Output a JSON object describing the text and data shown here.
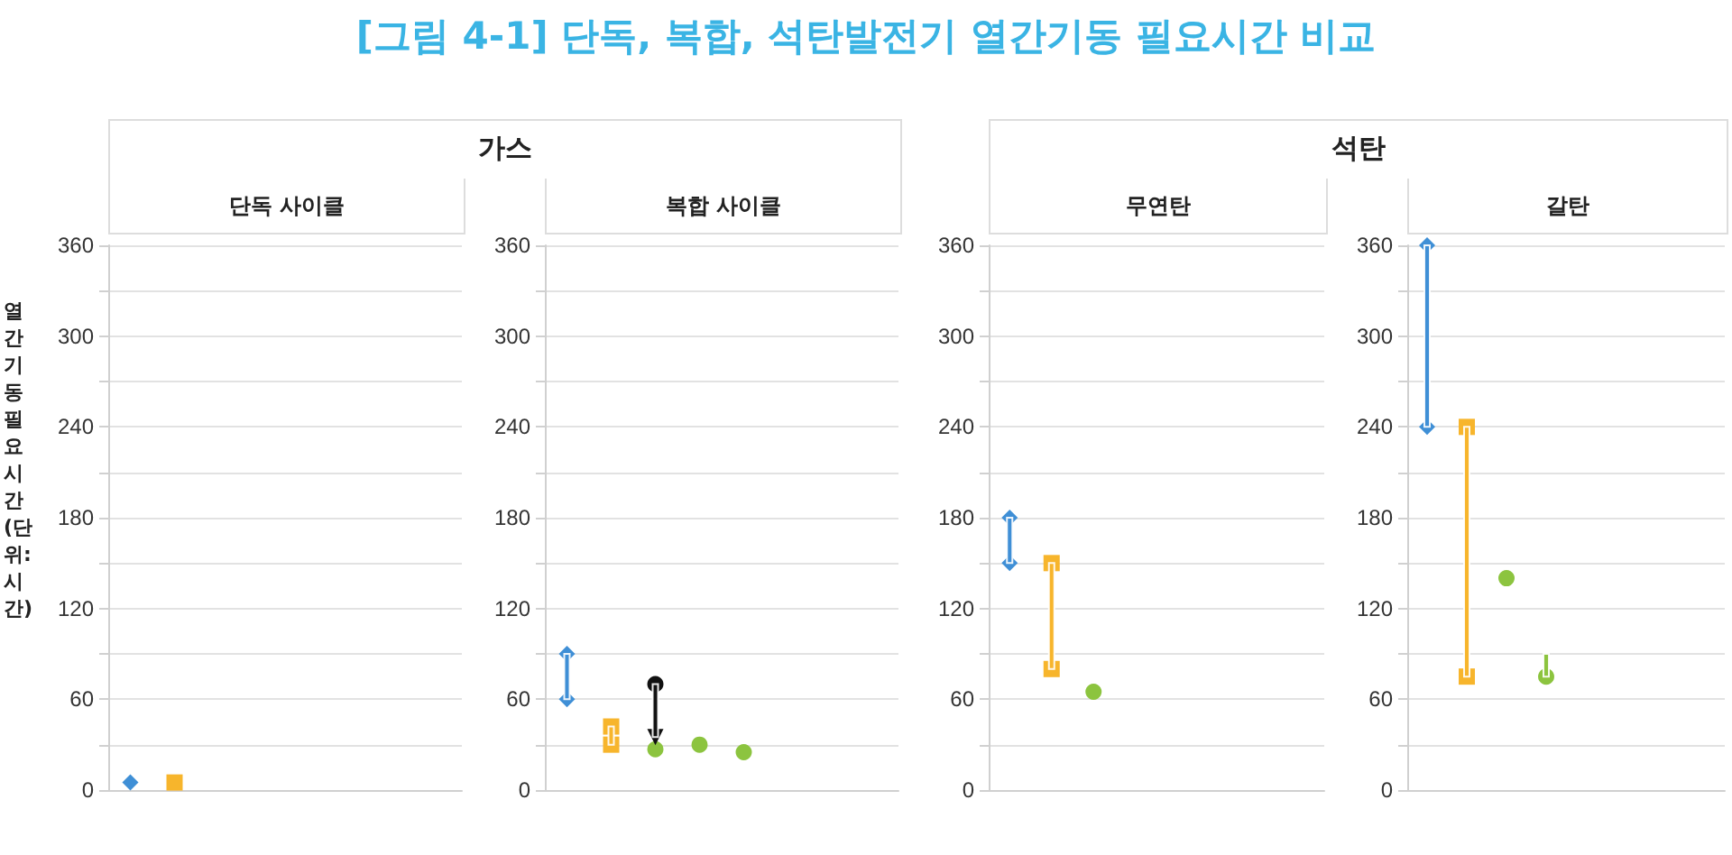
{
  "chart_data": [
    {
      "type": "scatter",
      "title": "[그림 4-1] 단독, 복합, 석탄발전기 열간기동 필요시간 비교",
      "subtitle": "단독 사이클",
      "annotations": [
        "가스"
      ],
      "ylabel": "열간기동 필요시간 (단위: 시간)",
      "categories": [
        null,
        null,
        null,
        null,
        null,
        null,
        null,
        null
      ],
      "grid": "y",
      "ylim": [
        0,
        360
      ],
      "yticks": [
        0,
        {
          "value": 30,
          "label": null
        },
        60,
        {
          "value": 90,
          "label": null
        },
        120,
        {
          "value": 150,
          "label": null
        },
        180,
        {
          "value": 210,
          "label": null
        },
        240,
        {
          "value": 270,
          "label": null
        },
        300,
        {
          "value": 330,
          "label": null
        },
        360
      ],
      "series": [
        {
          "color": "#3f8fd6",
          "marker": "diamond",
          "values": [
            5,
            null,
            null,
            null,
            null,
            null,
            null,
            null
          ]
        },
        {
          "color": "#f7b52c",
          "marker": "square",
          "values": [
            null,
            5,
            null,
            null,
            null,
            null,
            null,
            null
          ]
        }
      ]
    },
    {
      "type": "scatter",
      "subtitle": "복합 사이클",
      "categories": [
        null,
        null,
        null,
        null,
        null,
        null,
        null,
        null
      ],
      "grid": "y",
      "ylim": [
        0,
        360
      ],
      "yticks": [
        0,
        {
          "value": 30,
          "label": null
        },
        60,
        {
          "value": 90,
          "label": null
        },
        120,
        {
          "value": 150,
          "label": null
        },
        180,
        {
          "value": 210,
          "label": null
        },
        240,
        {
          "value": 270,
          "label": null
        },
        300,
        {
          "value": 330,
          "label": null
        },
        360
      ],
      "series": [
        {
          "type": "bar",
          "color": "#3f8fd6",
          "base": [
            60,
            null,
            null,
            null,
            null,
            null,
            null,
            null
          ],
          "values": [
            30,
            null,
            null,
            null,
            null,
            null,
            null,
            null
          ]
        },
        {
          "type": "bar",
          "color": "#f7b52c",
          "base": [
            null,
            30,
            null,
            null,
            null,
            null,
            null,
            null
          ],
          "values": [
            null,
            12,
            null,
            null,
            null,
            null,
            null,
            null
          ]
        },
        {
          "type": "bar",
          "color": "#111111",
          "base": [
            null,
            null,
            35,
            null,
            null,
            null,
            null,
            null
          ],
          "values": [
            null,
            null,
            35,
            null,
            null,
            null,
            null,
            null
          ]
        },
        {
          "color": "#3f8fd6",
          "marker": "diamond",
          "values": [
            60,
            null,
            null,
            null,
            null,
            null,
            null,
            null
          ]
        },
        {
          "color": "#3f8fd6",
          "marker": "diamond",
          "values": [
            90,
            null,
            null,
            null,
            null,
            null,
            null,
            null
          ]
        },
        {
          "color": "#f7b52c",
          "marker": "square",
          "values": [
            null,
            30,
            null,
            null,
            null,
            null,
            null,
            null
          ]
        },
        {
          "color": "#f7b52c",
          "marker": "square",
          "values": [
            null,
            42,
            null,
            null,
            null,
            null,
            null,
            null
          ]
        },
        {
          "color": "#111111",
          "marker": "triangle",
          "values": [
            null,
            null,
            35,
            null,
            null,
            null,
            null,
            null
          ]
        },
        {
          "color": "#111111",
          "marker": "circle",
          "values": [
            null,
            null,
            70,
            null,
            null,
            null,
            null,
            null
          ]
        },
        {
          "color": "#8cc43f",
          "marker": "circle",
          "values": [
            null,
            null,
            27,
            30,
            25,
            null,
            null,
            null
          ]
        }
      ]
    },
    {
      "type": "scatter",
      "subtitle": "무연탄",
      "annotations": [
        "석탄"
      ],
      "categories": [
        null,
        null,
        null,
        null,
        null,
        null,
        null,
        null
      ],
      "grid": "y",
      "ylim": [
        0,
        360
      ],
      "yticks": [
        0,
        {
          "value": 30,
          "label": null
        },
        60,
        {
          "value": 90,
          "label": null
        },
        120,
        {
          "value": 150,
          "label": null
        },
        180,
        {
          "value": 210,
          "label": null
        },
        240,
        {
          "value": 270,
          "label": null
        },
        300,
        {
          "value": 330,
          "label": null
        },
        360
      ],
      "series": [
        {
          "type": "bar",
          "color": "#3f8fd6",
          "base": [
            150,
            null,
            null,
            null,
            null,
            null,
            null,
            null
          ],
          "values": [
            30,
            null,
            null,
            null,
            null,
            null,
            null,
            null
          ]
        },
        {
          "type": "bar",
          "color": "#f7b52c",
          "base": [
            null,
            80,
            null,
            null,
            null,
            null,
            null,
            null
          ],
          "values": [
            null,
            70,
            null,
            null,
            null,
            null,
            null,
            null
          ]
        },
        {
          "color": "#3f8fd6",
          "marker": "diamond",
          "values": [
            150,
            null,
            null,
            null,
            null,
            null,
            null,
            null
          ]
        },
        {
          "color": "#3f8fd6",
          "marker": "diamond",
          "values": [
            180,
            null,
            null,
            null,
            null,
            null,
            null,
            null
          ]
        },
        {
          "color": "#f7b52c",
          "marker": "square",
          "values": [
            null,
            80,
            null,
            null,
            null,
            null,
            null,
            null
          ]
        },
        {
          "color": "#f7b52c",
          "marker": "square",
          "values": [
            null,
            150,
            null,
            null,
            null,
            null,
            null,
            null
          ]
        },
        {
          "color": "#8cc43f",
          "marker": "circle",
          "values": [
            null,
            null,
            65,
            null,
            null,
            null,
            null,
            null
          ]
        }
      ]
    },
    {
      "type": "scatter",
      "subtitle": "갈탄",
      "categories": [
        null,
        null,
        null,
        null,
        null,
        null,
        null,
        null
      ],
      "grid": "y",
      "ylim": [
        0,
        360
      ],
      "yticks": [
        0,
        {
          "value": 30,
          "label": null
        },
        60,
        {
          "value": 90,
          "label": null
        },
        120,
        {
          "value": 150,
          "label": null
        },
        180,
        {
          "value": 210,
          "label": null
        },
        240,
        {
          "value": 270,
          "label": null
        },
        300,
        {
          "value": 330,
          "label": null
        },
        360
      ],
      "series": [
        {
          "type": "bar",
          "color": "#3f8fd6",
          "base": [
            240,
            null,
            null,
            null,
            null,
            null,
            null,
            null
          ],
          "values": [
            120,
            null,
            null,
            null,
            null,
            null,
            null,
            null
          ]
        },
        {
          "type": "bar",
          "color": "#f7b52c",
          "base": [
            null,
            75,
            null,
            null,
            null,
            null,
            null,
            null
          ],
          "values": [
            null,
            165,
            null,
            null,
            null,
            null,
            null,
            null
          ]
        },
        {
          "type": "bar",
          "color": "#8cc43f",
          "base": [
            null,
            null,
            null,
            75,
            null,
            null,
            null,
            null
          ],
          "values": [
            null,
            null,
            null,
            15,
            null,
            null,
            null,
            null
          ]
        },
        {
          "color": "#3f8fd6",
          "marker": "diamond",
          "values": [
            240,
            null,
            null,
            null,
            null,
            null,
            null,
            null
          ]
        },
        {
          "color": "#3f8fd6",
          "marker": "diamond",
          "values": [
            360,
            null,
            null,
            null,
            null,
            null,
            null,
            null
          ]
        },
        {
          "color": "#f7b52c",
          "marker": "square",
          "values": [
            null,
            75,
            null,
            null,
            null,
            null,
            null,
            null
          ]
        },
        {
          "color": "#f7b52c",
          "marker": "square",
          "values": [
            null,
            240,
            null,
            null,
            null,
            null,
            null,
            null
          ]
        },
        {
          "color": "#8cc43f",
          "marker": "circle",
          "values": [
            null,
            null,
            140,
            75,
            null,
            null,
            null,
            null
          ]
        }
      ]
    }
  ]
}
